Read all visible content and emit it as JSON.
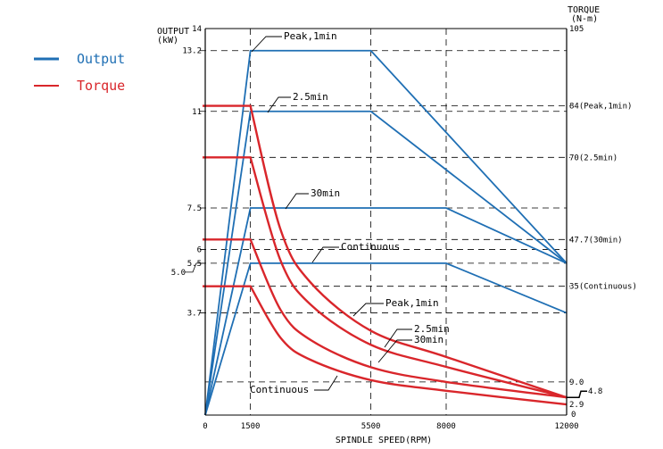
{
  "chart_data": {
    "type": "line",
    "xlabel": "SPINDLE SPEED(RPM)",
    "ylabel_left": [
      "OUTPUT",
      "(kW)"
    ],
    "ylabel_right": [
      "TORQUE",
      "(N-m)"
    ],
    "xlim": [
      0,
      12000
    ],
    "ylim_left": [
      0,
      14
    ],
    "ylim_right": [
      0,
      105
    ],
    "x_ticks": [
      "0",
      "1500",
      "5500",
      "8000",
      "12000"
    ],
    "x_tick_values": [
      0,
      1500,
      5500,
      8000,
      12000
    ],
    "left_ticks": [
      {
        "label": "14",
        "value": 14
      },
      {
        "label": "13.2",
        "value": 13.2
      },
      {
        "label": "11",
        "value": 11
      },
      {
        "label": "7.5",
        "value": 7.5
      },
      {
        "label": "6",
        "value": 6
      },
      {
        "label": "5.5",
        "value": 5.5
      },
      {
        "label": "5.0",
        "value": 5.0
      },
      {
        "label": "3.7",
        "value": 3.7
      }
    ],
    "right_ticks": [
      {
        "label": "105",
        "value": 105
      },
      {
        "label": "84(Peak,1min)",
        "value": 84
      },
      {
        "label": "70(2.5min)",
        "value": 70
      },
      {
        "label": "47.7(30min)",
        "value": 47.7
      },
      {
        "label": "35(Continuous)",
        "value": 35
      },
      {
        "label": "9.0",
        "value": 9.0
      },
      {
        "label": "4.8",
        "value": 4.8
      },
      {
        "label": "2.9",
        "value": 2.9
      },
      {
        "label": "0",
        "value": 0
      }
    ],
    "grid": true,
    "legend_position": "top-left",
    "legend": [
      {
        "name": "Output",
        "color": "#1f6fb4"
      },
      {
        "name": "Torque",
        "color": "#d9262b"
      }
    ],
    "output_series": [
      {
        "name": "Peak,1min",
        "x": [
          0,
          1500,
          5500,
          12000
        ],
        "y": [
          0,
          13.2,
          13.2,
          5.5
        ]
      },
      {
        "name": "2.5min",
        "x": [
          0,
          1500,
          5500,
          12000
        ],
        "y": [
          0,
          11,
          11,
          5.5
        ]
      },
      {
        "name": "30min",
        "x": [
          0,
          1500,
          8000,
          12000
        ],
        "y": [
          0,
          7.5,
          7.5,
          5.5
        ]
      },
      {
        "name": "Continuous",
        "x": [
          0,
          1500,
          8000,
          12000
        ],
        "y": [
          0,
          5.5,
          5.5,
          3.7
        ]
      }
    ],
    "torque_series": [
      {
        "name": "Peak,1min",
        "x": [
          0,
          1500,
          2500,
          3500,
          5500,
          8000,
          12000
        ],
        "y": [
          84,
          84,
          50.4,
          36,
          22.9,
          15.8,
          4.8
        ]
      },
      {
        "name": "2.5min",
        "x": [
          0,
          1500,
          2500,
          3500,
          5500,
          8000,
          12000
        ],
        "y": [
          70,
          70,
          42,
          30,
          19.1,
          13.1,
          4.8
        ]
      },
      {
        "name": "30min",
        "x": [
          0,
          1500,
          2500,
          3500,
          5500,
          8000,
          12000
        ],
        "y": [
          47.7,
          47.7,
          28.6,
          20.4,
          13,
          9,
          4.8
        ]
      },
      {
        "name": "Continuous",
        "x": [
          0,
          1500,
          2500,
          3500,
          5500,
          8000,
          12000
        ],
        "y": [
          35,
          35,
          21,
          15,
          9.5,
          6.6,
          2.9
        ]
      }
    ],
    "annotations": {
      "output": [
        "Peak,1min",
        "2.5min",
        "30min",
        "Continuous"
      ],
      "torque": [
        "Peak,1min",
        "2.5min",
        "30min",
        "Continuous"
      ]
    }
  }
}
